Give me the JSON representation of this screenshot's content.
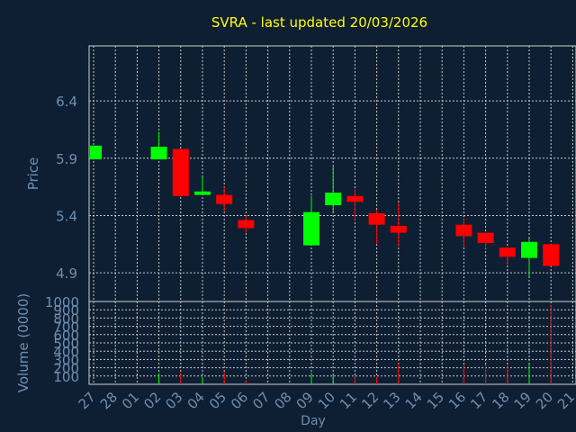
{
  "chart_data": {
    "type": "candlestick",
    "title": "SVRA - last updated 20/03/2026",
    "xlabel": "Day",
    "colors": {
      "background": "#0f1f33",
      "title": "#ffff00",
      "axis_text": "#6f8fb0",
      "grid": "#c8c8c8",
      "up": "#00ff00",
      "down": "#ff0000"
    },
    "x_ticks": [
      "27",
      "28",
      "01",
      "02",
      "03",
      "04",
      "05",
      "06",
      "07",
      "08",
      "09",
      "10",
      "11",
      "12",
      "13",
      "14",
      "15",
      "16",
      "17",
      "18",
      "19",
      "20",
      "21"
    ],
    "price": {
      "ylabel": "Price",
      "ylim": [
        4.65,
        6.88
      ],
      "ticks": [
        "4.9",
        "5.4",
        "5.9",
        "6.4"
      ],
      "tick_values": [
        4.9,
        5.4,
        5.9,
        6.4
      ],
      "candles": [
        {
          "day": "27",
          "open": 5.89,
          "close": 6.01,
          "high": 6.01,
          "low": 5.89
        },
        {
          "day": "02",
          "open": 5.89,
          "close": 6.0,
          "high": 6.13,
          "low": 5.89
        },
        {
          "day": "03",
          "open": 5.98,
          "close": 5.57,
          "high": 5.98,
          "low": 5.56
        },
        {
          "day": "04",
          "open": 5.58,
          "close": 5.61,
          "high": 5.74,
          "low": 5.58
        },
        {
          "day": "05",
          "open": 5.58,
          "close": 5.5,
          "high": 5.65,
          "low": 5.43
        },
        {
          "day": "06",
          "open": 5.36,
          "close": 5.29,
          "high": 5.4,
          "low": 5.25
        },
        {
          "day": "09",
          "open": 5.14,
          "close": 5.43,
          "high": 5.57,
          "low": 5.14
        },
        {
          "day": "10",
          "open": 5.49,
          "close": 5.6,
          "high": 5.84,
          "low": 5.43
        },
        {
          "day": "11",
          "open": 5.57,
          "close": 5.52,
          "high": 5.63,
          "low": 5.36
        },
        {
          "day": "12",
          "open": 5.42,
          "close": 5.32,
          "high": 5.45,
          "low": 5.15
        },
        {
          "day": "13",
          "open": 5.31,
          "close": 5.25,
          "high": 5.51,
          "low": 5.13
        },
        {
          "day": "16",
          "open": 5.32,
          "close": 5.22,
          "high": 5.38,
          "low": 5.12
        },
        {
          "day": "17",
          "open": 5.25,
          "close": 5.16,
          "high": 5.25,
          "low": 5.11
        },
        {
          "day": "18",
          "open": 5.12,
          "close": 5.04,
          "high": 5.12,
          "low": 4.97
        },
        {
          "day": "19",
          "open": 5.03,
          "close": 5.17,
          "high": 5.2,
          "low": 4.87
        },
        {
          "day": "20",
          "open": 5.15,
          "close": 4.96,
          "high": 5.15,
          "low": 4.96
        }
      ]
    },
    "volume": {
      "ylabel": "Volume (0000)",
      "ylim": [
        0,
        1000
      ],
      "ticks": [
        "100",
        "200",
        "300",
        "400",
        "500",
        "600",
        "700",
        "800",
        "900",
        "1000"
      ],
      "tick_values": [
        100,
        200,
        300,
        400,
        500,
        600,
        700,
        800,
        900,
        1000
      ],
      "bars": [
        {
          "day": "02",
          "value": 130,
          "dir": "up"
        },
        {
          "day": "03",
          "value": 140,
          "dir": "down"
        },
        {
          "day": "04",
          "value": 90,
          "dir": "up"
        },
        {
          "day": "05",
          "value": 150,
          "dir": "down"
        },
        {
          "day": "06",
          "value": 40,
          "dir": "down"
        },
        {
          "day": "09",
          "value": 140,
          "dir": "up"
        },
        {
          "day": "10",
          "value": 110,
          "dir": "up"
        },
        {
          "day": "11",
          "value": 100,
          "dir": "down"
        },
        {
          "day": "12",
          "value": 90,
          "dir": "down"
        },
        {
          "day": "13",
          "value": 250,
          "dir": "down"
        },
        {
          "day": "16",
          "value": 240,
          "dir": "down"
        },
        {
          "day": "17",
          "value": 240,
          "dir": "down"
        },
        {
          "day": "18",
          "value": 230,
          "dir": "down"
        },
        {
          "day": "19",
          "value": 240,
          "dir": "up"
        },
        {
          "day": "20",
          "value": 960,
          "dir": "down"
        }
      ]
    }
  }
}
